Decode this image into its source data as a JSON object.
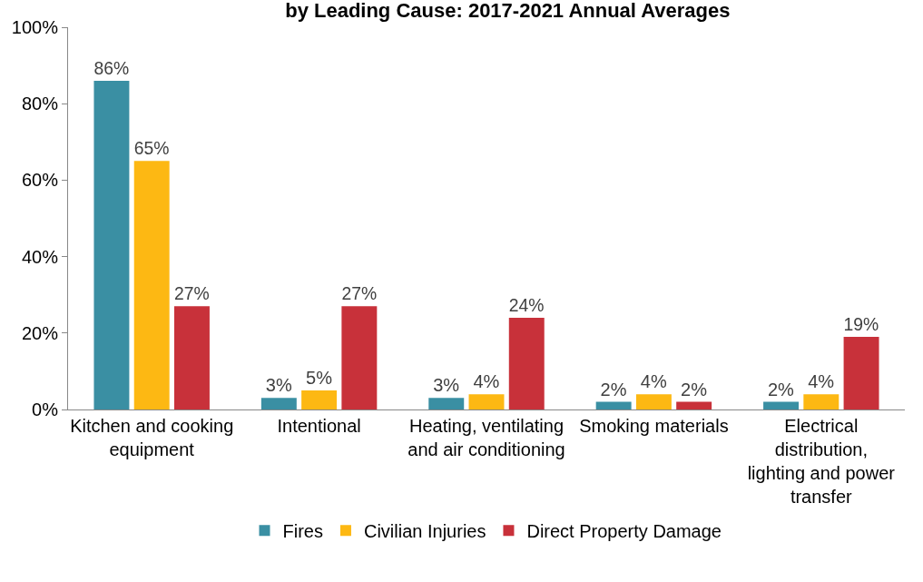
{
  "chart_data": {
    "type": "bar",
    "title": "by Leading Cause: 2017-2021 Annual Averages",
    "categories": [
      "Kitchen and cooking equipment",
      "Intentional",
      "Heating, ventilating and air conditioning",
      "Smoking materials",
      "Electrical distribution, lighting and power transfer"
    ],
    "series": [
      {
        "name": "Fires",
        "color": "#3a8fa3",
        "values": [
          86,
          3,
          3,
          2,
          2
        ],
        "value_labels": [
          "86%",
          "3%",
          "3%",
          "2%",
          "2%"
        ]
      },
      {
        "name": "Civilian Injuries",
        "color": "#fdb813",
        "values": [
          65,
          5,
          4,
          4,
          4
        ],
        "value_labels": [
          "65%",
          "5%",
          "4%",
          "4%",
          "4%"
        ]
      },
      {
        "name": "Direct Property Damage",
        "color": "#c8313a",
        "values": [
          27,
          27,
          24,
          2,
          19
        ],
        "value_labels": [
          "27%",
          "27%",
          "24%",
          "2%",
          "19%"
        ]
      }
    ],
    "ylim": [
      0,
      100
    ],
    "yticks": [
      {
        "value": 0,
        "label": "0%"
      },
      {
        "value": 20,
        "label": "20%"
      },
      {
        "value": 40,
        "label": "40%"
      },
      {
        "value": 60,
        "label": "60%"
      },
      {
        "value": 80,
        "label": "80%"
      },
      {
        "value": 100,
        "label": "100%"
      }
    ],
    "grid": false,
    "legend": "bottom"
  }
}
